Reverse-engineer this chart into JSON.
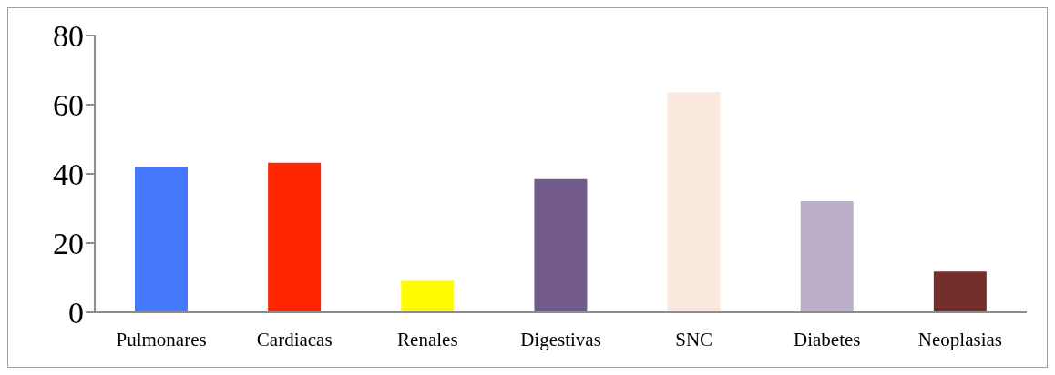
{
  "chart_data": {
    "type": "bar",
    "categories": [
      "Pulmonares",
      "Cardiacas",
      "Renales",
      "Digestivas",
      "SNC",
      "Diabetes",
      "Neoplasias"
    ],
    "values": [
      42.1,
      43.2,
      9.1,
      38.5,
      63.6,
      32.1,
      11.8
    ],
    "colors": [
      "#4479fd",
      "#ff2600",
      "#fffb00",
      "#735a8c",
      "#f9e9de",
      "#bcafcb",
      "#732f2c"
    ],
    "ylim": [
      0,
      80
    ],
    "yticks": [
      0,
      20,
      40,
      60,
      80
    ],
    "grid": false
  }
}
